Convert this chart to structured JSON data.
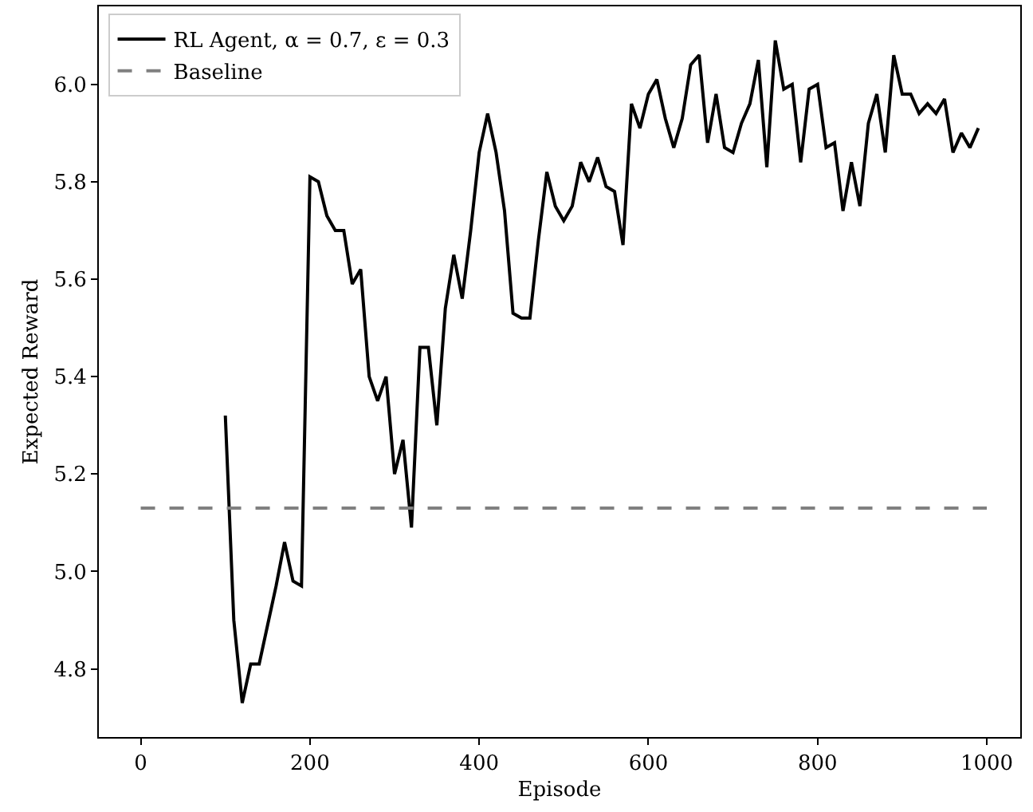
{
  "chart_data": {
    "type": "line",
    "xlabel": "Episode",
    "ylabel": "Expected Reward",
    "xlim": [
      -49.5,
      1039.5
    ],
    "xticks": [
      0,
      200,
      400,
      600,
      800,
      1000
    ],
    "ylim": [
      4.66,
      6.16
    ],
    "yticks": [
      {
        "value": 4.8,
        "label": "4.8"
      },
      {
        "value": 5.0,
        "label": "5.0"
      },
      {
        "value": 5.2,
        "label": "5.2"
      },
      {
        "value": 5.4,
        "label": "5.4"
      },
      {
        "value": 5.6,
        "label": "5.6"
      },
      {
        "value": 5.8,
        "label": "5.8"
      },
      {
        "value": 6.0,
        "label": "6.0"
      }
    ],
    "legend": "top left",
    "marker": "none",
    "series": [
      {
        "name": "RL Agent, α = 0.7, ε = 0.3",
        "color": "#000000",
        "line_style": "solid",
        "x": [
          100,
          110,
          120,
          130,
          140,
          150,
          160,
          170,
          180,
          190,
          200,
          210,
          220,
          230,
          240,
          250,
          260,
          270,
          280,
          290,
          300,
          310,
          320,
          330,
          340,
          350,
          360,
          370,
          380,
          390,
          400,
          410,
          420,
          430,
          440,
          450,
          460,
          470,
          480,
          490,
          500,
          510,
          520,
          530,
          540,
          550,
          560,
          570,
          580,
          590,
          600,
          610,
          620,
          630,
          640,
          650,
          660,
          670,
          680,
          690,
          700,
          710,
          720,
          730,
          740,
          750,
          760,
          770,
          780,
          790,
          800,
          810,
          820,
          830,
          840,
          850,
          860,
          870,
          880,
          890,
          900,
          910,
          920,
          930,
          940,
          950,
          960,
          970,
          980,
          990
        ],
        "values": [
          5.32,
          4.9,
          4.73,
          4.81,
          4.81,
          4.89,
          4.97,
          5.06,
          4.98,
          4.97,
          5.81,
          5.8,
          5.73,
          5.7,
          5.7,
          5.59,
          5.62,
          5.4,
          5.35,
          5.4,
          5.2,
          5.27,
          5.09,
          5.46,
          5.46,
          5.3,
          5.54,
          5.65,
          5.56,
          5.7,
          5.86,
          5.94,
          5.86,
          5.74,
          5.53,
          5.52,
          5.52,
          5.68,
          5.82,
          5.75,
          5.72,
          5.75,
          5.84,
          5.8,
          5.85,
          5.79,
          5.78,
          5.67,
          5.96,
          5.91,
          5.98,
          6.01,
          5.93,
          5.87,
          5.93,
          6.04,
          6.06,
          5.88,
          5.98,
          5.87,
          5.86,
          5.92,
          5.96,
          6.05,
          5.83,
          6.09,
          5.99,
          6.0,
          5.84,
          5.99,
          6.0,
          5.87,
          5.88,
          5.74,
          5.84,
          5.75,
          5.92,
          5.98,
          5.86,
          6.06,
          5.98,
          5.98,
          5.94,
          5.96,
          5.94,
          5.97,
          5.86,
          5.9,
          5.87,
          5.91
        ]
      },
      {
        "name": "Baseline",
        "color": "#808080",
        "line_style": "dashed",
        "x": [
          0,
          1000
        ],
        "values": [
          5.13,
          5.13
        ]
      }
    ]
  }
}
